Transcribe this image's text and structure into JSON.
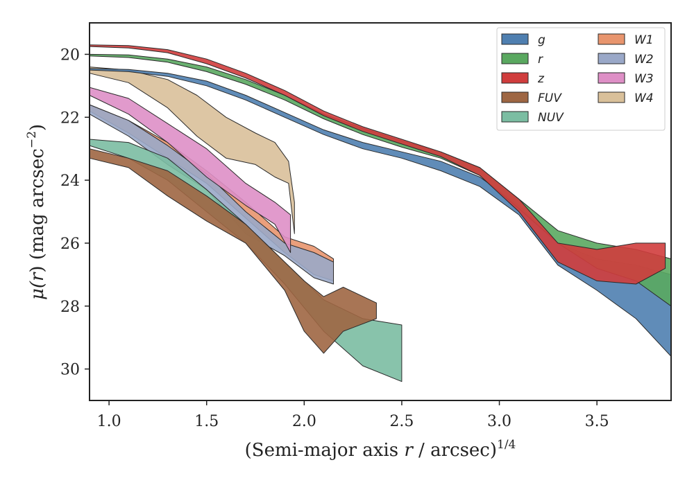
{
  "chart_data": {
    "type": "area",
    "xlabel": "(Semi-major axis r / arcsec)^1/4",
    "xlabel_parts": {
      "pre": "(Semi-major axis ",
      "var": "r",
      "mid": " / arcsec)",
      "sup": "1/4"
    },
    "ylabel": "μ(r) (mag arcsec^−2)",
    "ylabel_parts": {
      "mu": "μ(",
      "var": "r",
      "post": ") (mag arcsec",
      "sup": "−2",
      "close": ")"
    },
    "xlim": [
      0.9,
      3.88
    ],
    "ylim": [
      31,
      19
    ],
    "y_inverted": true,
    "x_ticks": [
      "1.0",
      "1.5",
      "2.0",
      "2.5",
      "3.0",
      "3.5"
    ],
    "x_tick_values": [
      1.0,
      1.5,
      2.0,
      2.5,
      3.0,
      3.5
    ],
    "y_ticks": [
      "20",
      "22",
      "24",
      "26",
      "28",
      "30"
    ],
    "y_tick_values": [
      20,
      22,
      24,
      26,
      28,
      30
    ],
    "grid": false,
    "legend_position": "top-right",
    "legend_columns": 2,
    "series": [
      {
        "name": "W4",
        "color": "#d9c09a",
        "x": [
          0.9,
          1.1,
          1.3,
          1.45,
          1.6,
          1.75,
          1.85,
          1.92,
          1.95
        ],
        "y_low": [
          20.6,
          20.9,
          21.7,
          22.6,
          23.3,
          23.5,
          23.9,
          24.1,
          25.7
        ],
        "y_high": [
          20.4,
          20.5,
          20.8,
          21.3,
          22.0,
          22.5,
          22.8,
          23.4,
          24.7
        ]
      },
      {
        "name": "W1",
        "color": "#e8956e",
        "x": [
          0.9,
          1.1,
          1.3,
          1.5,
          1.7,
          1.9,
          2.05,
          2.15
        ],
        "y_low": [
          21.8,
          22.5,
          23.3,
          24.1,
          25.2,
          26.3,
          27.0,
          27.2
        ],
        "y_high": [
          21.6,
          22.1,
          22.8,
          23.7,
          24.7,
          25.8,
          26.1,
          26.5
        ]
      },
      {
        "name": "W2",
        "color": "#9aa8c8",
        "x": [
          0.9,
          1.1,
          1.3,
          1.5,
          1.7,
          1.9,
          2.05,
          2.15
        ],
        "y_low": [
          21.9,
          22.6,
          23.5,
          24.3,
          25.7,
          26.4,
          27.1,
          27.3
        ],
        "y_high": [
          21.6,
          22.1,
          22.9,
          23.8,
          25.0,
          26.0,
          26.3,
          26.6
        ]
      },
      {
        "name": "W3",
        "color": "#de8fc6",
        "x": [
          0.9,
          1.1,
          1.3,
          1.5,
          1.7,
          1.85,
          1.93
        ],
        "y_low": [
          21.3,
          21.9,
          22.8,
          23.9,
          24.8,
          25.4,
          26.3
        ],
        "y_high": [
          21.05,
          21.4,
          22.2,
          23.0,
          24.1,
          24.7,
          25.1
        ]
      },
      {
        "name": "NUV",
        "color": "#7bbda2",
        "x": [
          0.9,
          1.1,
          1.3,
          1.5,
          1.7,
          1.9,
          2.1,
          2.3,
          2.5
        ],
        "y_low": [
          22.9,
          23.3,
          24.0,
          25.0,
          26.0,
          27.3,
          28.8,
          29.9,
          30.4
        ],
        "y_high": [
          22.7,
          22.8,
          23.3,
          24.3,
          25.4,
          26.6,
          27.8,
          28.4,
          28.6
        ]
      },
      {
        "name": "FUV",
        "color": "#9e6643",
        "x": [
          0.9,
          1.1,
          1.3,
          1.5,
          1.7,
          1.9,
          2.0,
          2.1,
          2.2,
          2.37
        ],
        "y_low": [
          23.3,
          23.6,
          24.5,
          25.3,
          26.0,
          27.5,
          28.8,
          29.5,
          28.8,
          28.4
        ],
        "y_high": [
          23.0,
          23.3,
          23.7,
          24.5,
          25.4,
          26.6,
          27.2,
          27.7,
          27.4,
          27.9
        ]
      },
      {
        "name": "g",
        "color": "#4f7fb0",
        "x": [
          0.9,
          1.1,
          1.3,
          1.5,
          1.7,
          1.9,
          2.1,
          2.3,
          2.5,
          2.7,
          2.9,
          3.1,
          3.3,
          3.5,
          3.7,
          3.88
        ],
        "y_low": [
          20.5,
          20.55,
          20.7,
          21.0,
          21.45,
          22.0,
          22.55,
          23.0,
          23.3,
          23.7,
          24.2,
          25.1,
          26.7,
          27.5,
          28.4,
          29.6
        ],
        "y_high": [
          20.45,
          20.48,
          20.6,
          20.85,
          21.3,
          21.85,
          22.4,
          22.8,
          23.1,
          23.4,
          23.9,
          24.8,
          26.0,
          26.5,
          26.7,
          27.0
        ]
      },
      {
        "name": "r",
        "color": "#5aa860",
        "x": [
          0.9,
          1.1,
          1.3,
          1.5,
          1.7,
          1.9,
          2.1,
          2.3,
          2.5,
          2.7,
          2.9,
          3.1,
          3.3,
          3.5,
          3.7,
          3.88
        ],
        "y_low": [
          20.05,
          20.1,
          20.25,
          20.55,
          20.95,
          21.45,
          22.05,
          22.55,
          22.95,
          23.3,
          23.85,
          24.9,
          26.0,
          26.8,
          27.2,
          28.0
        ],
        "y_high": [
          20.0,
          20.02,
          20.15,
          20.4,
          20.8,
          21.3,
          21.9,
          22.35,
          22.75,
          23.1,
          23.6,
          24.6,
          25.6,
          26.0,
          26.2,
          26.5
        ]
      },
      {
        "name": "z",
        "color": "#d03d3d",
        "x": [
          0.9,
          1.1,
          1.3,
          1.5,
          1.7,
          1.9,
          2.1,
          2.3,
          2.5,
          2.7,
          2.9,
          3.1,
          3.3,
          3.5,
          3.7,
          3.85
        ],
        "y_low": [
          19.75,
          19.8,
          19.95,
          20.3,
          20.75,
          21.3,
          21.95,
          22.45,
          22.85,
          23.25,
          23.85,
          25.0,
          26.6,
          27.2,
          27.3,
          26.8
        ],
        "y_high": [
          19.7,
          19.72,
          19.85,
          20.15,
          20.6,
          21.15,
          21.8,
          22.3,
          22.7,
          23.1,
          23.6,
          24.6,
          26.0,
          26.2,
          26.0,
          26.0
        ]
      }
    ],
    "legend": [
      {
        "name": "g",
        "color": "#4f7fb0"
      },
      {
        "name": "r",
        "color": "#5aa860"
      },
      {
        "name": "z",
        "color": "#d03d3d"
      },
      {
        "name": "FUV",
        "color": "#9e6643"
      },
      {
        "name": "NUV",
        "color": "#7bbda2"
      },
      {
        "name": "W1",
        "color": "#e8956e"
      },
      {
        "name": "W2",
        "color": "#9aa8c8"
      },
      {
        "name": "W3",
        "color": "#de8fc6"
      },
      {
        "name": "W4",
        "color": "#d9c09a"
      }
    ]
  }
}
